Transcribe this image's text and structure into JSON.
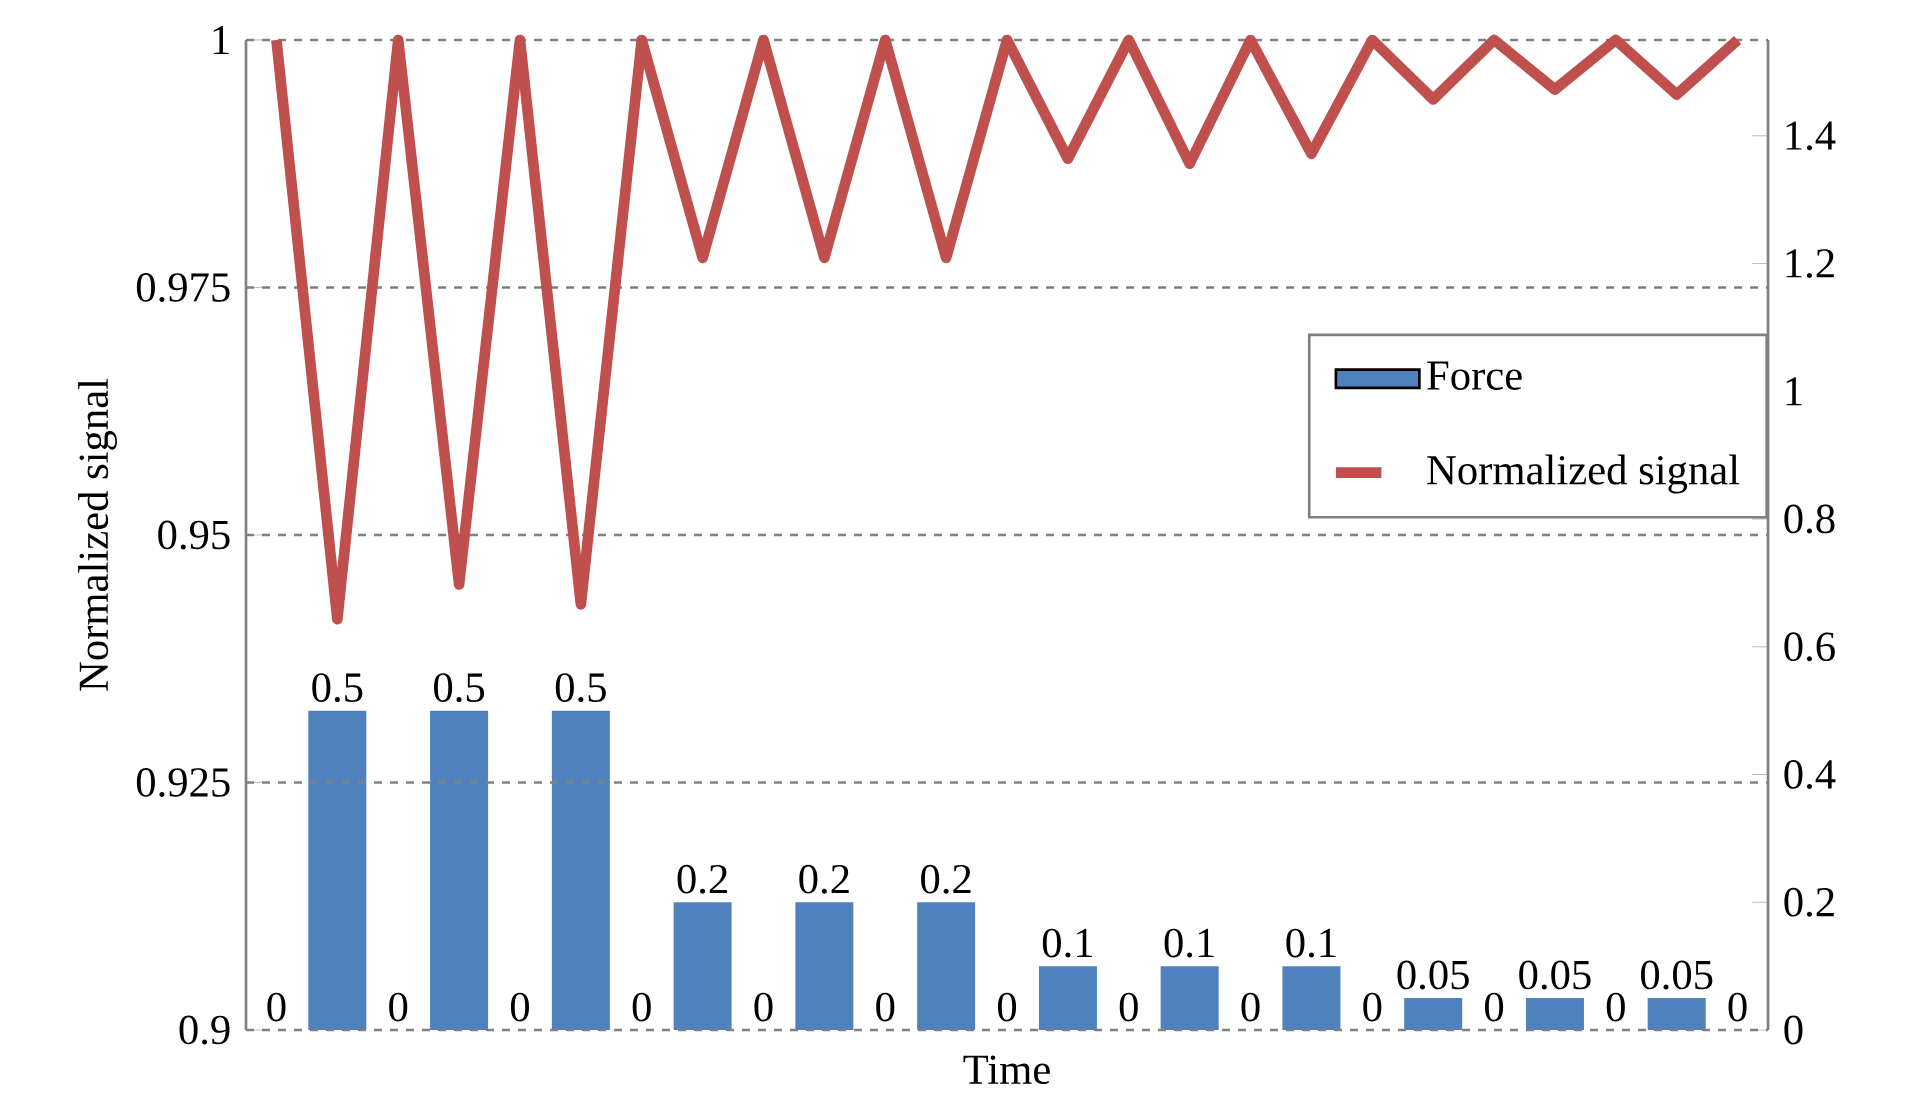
{
  "chart_data": {
    "type": "bar",
    "xlabel": "Time",
    "ylabel": "Normalized signal",
    "categories": [
      null,
      null,
      null,
      null,
      null,
      null,
      null,
      null,
      null,
      null,
      null,
      null,
      null,
      null,
      null,
      null,
      null,
      null,
      null,
      null,
      null,
      null,
      null,
      null,
      null
    ],
    "series": [
      {
        "name": "Force",
        "axis": "y2",
        "color": "#4f81bd",
        "values": [
          0,
          0.5,
          0,
          0.5,
          0,
          0.5,
          0,
          0.2,
          0,
          0.2,
          0,
          0.2,
          0,
          0.1,
          0,
          0.1,
          0,
          0.1,
          0,
          0.05,
          0,
          0.05,
          0,
          0.05,
          0
        ],
        "value_labels": [
          "0",
          "0.5",
          "0",
          "0.5",
          "0",
          "0.5",
          "0",
          "0.2",
          "0",
          "0.2",
          "0",
          "0.2",
          "0",
          "0.1",
          "0",
          "0.1",
          "0",
          "0.1",
          "0",
          "0.05",
          "0",
          "0.05",
          "0",
          "0.05",
          "0"
        ]
      },
      {
        "name": "Normalized signal",
        "type": "line",
        "color": "#c0504d",
        "values": [
          1,
          0.9415,
          1,
          0.945,
          1,
          0.943,
          1,
          0.978,
          1,
          0.978,
          1,
          0.978,
          1,
          0.988,
          1,
          0.9875,
          1,
          0.9885,
          1,
          0.994,
          1,
          0.995,
          1,
          0.9945,
          1
        ]
      }
    ],
    "ylim": [
      0.9,
      1
    ],
    "yticks": [
      0.9,
      0.925,
      0.95,
      0.975,
      1
    ],
    "y2lim": [
      0,
      1.55
    ],
    "y2ticks": [
      0,
      0.2,
      0.4,
      0.6,
      0.8,
      1,
      1.2,
      1.4
    ],
    "grid": "y",
    "legend": "right",
    "marker": "none",
    "line_style": "solid"
  }
}
